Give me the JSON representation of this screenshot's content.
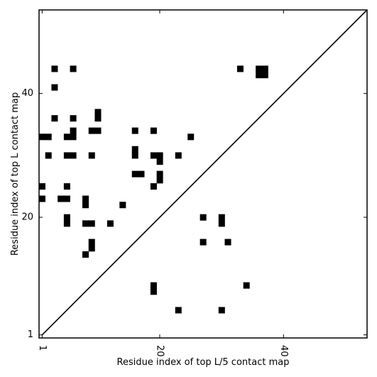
{
  "chart_data": {
    "type": "scatter",
    "subtype": "contact-map",
    "xlabel": "Residue index of top L/5 contact map",
    "ylabel": "Residue index of top L contact map",
    "xlim": [
      0.5,
      53.5
    ],
    "ylim": [
      0.5,
      53.5
    ],
    "xticks": [
      {
        "value": 1,
        "label": "1"
      },
      {
        "value": 20,
        "label": "20"
      },
      {
        "value": 40,
        "label": "40"
      }
    ],
    "yticks": [
      {
        "value": 1,
        "label": "1"
      },
      {
        "value": 20,
        "label": "20"
      },
      {
        "value": 40,
        "label": "40"
      }
    ],
    "x_tick_label_rotation": -90,
    "diagonal": true,
    "grid": false,
    "colors": {
      "contact": "#000000",
      "background": "#ffffff",
      "diagonal": "#000000"
    },
    "contacts": [
      [
        3,
        44
      ],
      [
        6,
        44
      ],
      [
        3,
        41
      ],
      [
        3,
        36
      ],
      [
        6,
        36
      ],
      [
        10,
        37
      ],
      [
        10,
        36
      ],
      [
        1,
        33
      ],
      [
        2,
        33
      ],
      [
        5,
        33
      ],
      [
        6,
        33
      ],
      [
        6,
        34
      ],
      [
        9,
        34
      ],
      [
        10,
        34
      ],
      [
        16,
        34
      ],
      [
        19,
        34
      ],
      [
        25,
        33
      ],
      [
        2,
        30
      ],
      [
        5,
        30
      ],
      [
        6,
        30
      ],
      [
        9,
        30
      ],
      [
        16,
        31
      ],
      [
        16,
        30
      ],
      [
        19,
        30
      ],
      [
        20,
        30
      ],
      [
        20,
        29
      ],
      [
        23,
        30
      ],
      [
        16,
        27
      ],
      [
        17,
        27
      ],
      [
        20,
        27
      ],
      [
        20,
        26
      ],
      [
        1,
        25
      ],
      [
        5,
        25
      ],
      [
        19,
        25
      ],
      [
        1,
        23
      ],
      [
        4,
        23
      ],
      [
        5,
        23
      ],
      [
        8,
        23
      ],
      [
        8,
        22
      ],
      [
        14,
        22
      ],
      [
        5,
        20
      ],
      [
        5,
        19
      ],
      [
        8,
        19
      ],
      [
        9,
        19
      ],
      [
        12,
        19
      ],
      [
        27,
        20
      ],
      [
        30,
        20
      ],
      [
        30,
        19
      ],
      [
        9,
        16
      ],
      [
        9,
        15
      ],
      [
        8,
        14
      ],
      [
        27,
        16
      ],
      [
        31,
        16
      ],
      [
        19,
        9
      ],
      [
        19,
        8
      ],
      [
        34,
        9
      ],
      [
        23,
        5
      ],
      [
        30,
        5
      ],
      [
        33,
        44
      ],
      [
        36,
        44
      ],
      [
        37,
        44
      ],
      [
        36,
        43
      ],
      [
        37,
        43
      ]
    ]
  }
}
